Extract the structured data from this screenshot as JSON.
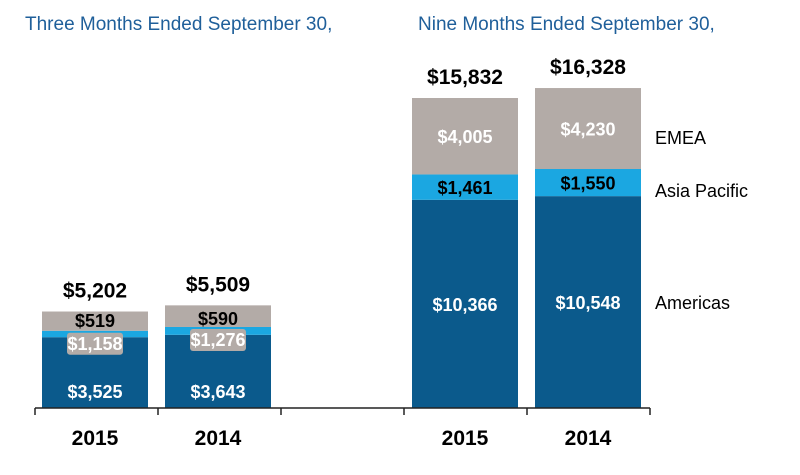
{
  "chart_data": {
    "type": "bar",
    "stacked": true,
    "unit": "$",
    "groups": [
      {
        "title": "Three Months Ended September 30,",
        "categories": [
          "2015",
          "2014"
        ]
      },
      {
        "title": "Nine Months Ended September 30,",
        "categories": [
          "2015",
          "2014"
        ]
      }
    ],
    "series": [
      {
        "name": "Americas",
        "color": "#0b5a8c",
        "label_color": "#ffffff",
        "values": [
          3525,
          3643,
          10366,
          10548
        ],
        "labels": [
          "$3,525",
          "$3,643",
          "$10,366",
          "$10,548"
        ]
      },
      {
        "name": "Asia Pacific",
        "color": "#1ba7e1",
        "label_color": "#000000",
        "values": [
          519,
          590,
          1461,
          1550
        ],
        "labels": [
          "$519",
          "$590",
          "$1,461",
          "$1,550"
        ]
      },
      {
        "name": "EMEA",
        "color": "#b3aba7",
        "label_color": "#ffffff",
        "values": [
          1158,
          1276,
          4005,
          4230
        ],
        "labels": [
          "$1,158",
          "$1,276",
          "$4,005",
          "$4,230"
        ]
      }
    ],
    "totals": [
      5202,
      5509,
      15832,
      16328
    ],
    "total_labels": [
      "$5,202",
      "$5,509",
      "$15,832",
      "$16,328"
    ],
    "legend": [
      "EMEA",
      "Asia Pacific",
      "Americas"
    ],
    "legend_placement": "right",
    "grid": false
  }
}
